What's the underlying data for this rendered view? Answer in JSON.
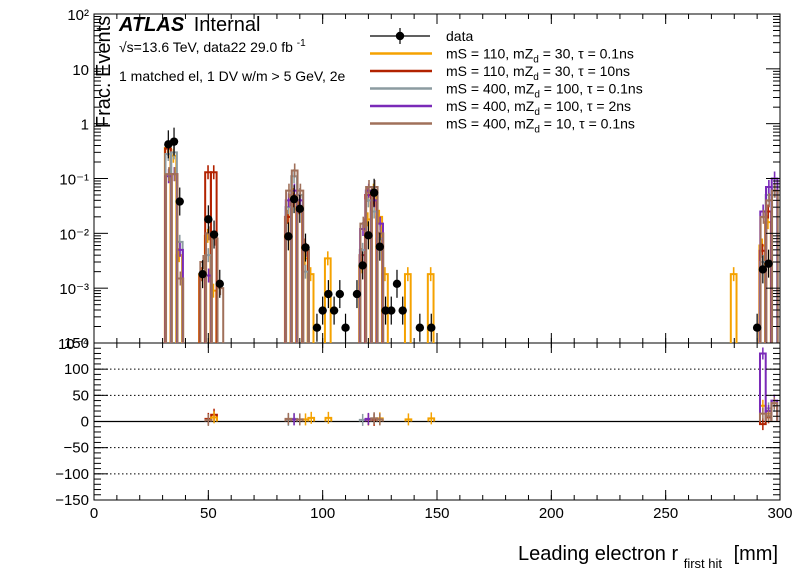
{
  "labels": {
    "atlas": "ATLAS",
    "internal": "Internal",
    "energy": "√s=13.6 TeV, data22 29.0 fb",
    "energy_sup": "-1",
    "selection": "1 matched el, 1 DV w/m > 5 GeV, 2e"
  },
  "chart_data": [
    {
      "type": "line",
      "panel": "main",
      "title": "",
      "xlabel": "Leading electron r",
      "xlabel_sub": "first hit",
      "xlabel_unit": "[mm]",
      "ylabel": "Frac. Events",
      "xlim": [
        0,
        300
      ],
      "ylim": [
        0.0001,
        100
      ],
      "log_y": true,
      "y_tick_labels": [
        "10⁻⁴",
        "10⁻³",
        "10⁻²",
        "10⁻¹",
        "1",
        "10",
        "10²"
      ],
      "x_tick_labels": [
        "0",
        "50",
        "100",
        "150",
        "200",
        "250",
        "300"
      ],
      "legend_position": "top-right",
      "bin_width": 2.5,
      "data_points": [
        {
          "x": 32.5,
          "y": 0.42
        },
        {
          "x": 35,
          "y": 0.47
        },
        {
          "x": 37.5,
          "y": 0.038
        },
        {
          "x": 47.5,
          "y": 0.0018
        },
        {
          "x": 50,
          "y": 0.018
        },
        {
          "x": 52.5,
          "y": 0.0095
        },
        {
          "x": 55,
          "y": 0.0012
        },
        {
          "x": 85,
          "y": 0.0088
        },
        {
          "x": 87.5,
          "y": 0.042
        },
        {
          "x": 90,
          "y": 0.028
        },
        {
          "x": 92.5,
          "y": 0.0055
        },
        {
          "x": 97.5,
          "y": 0.00019
        },
        {
          "x": 100,
          "y": 0.00039
        },
        {
          "x": 102.5,
          "y": 0.00078
        },
        {
          "x": 105,
          "y": 0.00039
        },
        {
          "x": 107.5,
          "y": 0.00078
        },
        {
          "x": 110,
          "y": 0.00019
        },
        {
          "x": 115,
          "y": 0.00078
        },
        {
          "x": 117.5,
          "y": 0.0026
        },
        {
          "x": 120,
          "y": 0.0092
        },
        {
          "x": 122.5,
          "y": 0.055
        },
        {
          "x": 125,
          "y": 0.0057
        },
        {
          "x": 127.5,
          "y": 0.00039
        },
        {
          "x": 130,
          "y": 0.00039
        },
        {
          "x": 132.5,
          "y": 0.0012
        },
        {
          "x": 135,
          "y": 0.00039
        },
        {
          "x": 142.5,
          "y": 0.00019
        },
        {
          "x": 147.5,
          "y": 0.00019
        },
        {
          "x": 290,
          "y": 0.00019
        },
        {
          "x": 292.5,
          "y": 0.0022
        },
        {
          "x": 295,
          "y": 0.0028
        }
      ],
      "series": [
        {
          "name": "data",
          "color": "#000000",
          "style": "marker"
        },
        {
          "name": "mS = 110, mZ_d = 30, τ = 0.1ns",
          "color": "#f5a200",
          "bins": [
            [
              32.5,
              0.36
            ],
            [
              35,
              0.26
            ],
            [
              37.5,
              0.004
            ],
            [
              47.5,
              0.0018
            ],
            [
              50,
              0.009
            ],
            [
              52.5,
              0.0009
            ],
            [
              85,
              0.02
            ],
            [
              87.5,
              0.05
            ],
            [
              90,
              0.03
            ],
            [
              92.5,
              0.0035
            ],
            [
              95,
              0.0018
            ],
            [
              102.5,
              0.0035
            ],
            [
              117.5,
              0.0025
            ],
            [
              120,
              0.018
            ],
            [
              122.5,
              0.06
            ],
            [
              125,
              0.02
            ],
            [
              127.5,
              0.0018
            ],
            [
              137.5,
              0.0018
            ],
            [
              147.5,
              0.0018
            ],
            [
              280,
              0.0018
            ],
            [
              292.5,
              0.006
            ],
            [
              295,
              0.016
            ]
          ]
        },
        {
          "name": "mS = 110, mZ_d = 30, τ = 10ns",
          "color": "#b22200",
          "bins": [
            [
              32.5,
              0.35
            ],
            [
              47.5,
              0.0018
            ],
            [
              50,
              0.13
            ],
            [
              52.5,
              0.13
            ],
            [
              85,
              0.02
            ],
            [
              87.5,
              0.04
            ],
            [
              90,
              0.03
            ],
            [
              92.5,
              0.006
            ],
            [
              117.5,
              0.004
            ],
            [
              120,
              0.05
            ],
            [
              122.5,
              0.04
            ],
            [
              125,
              0.008
            ],
            [
              292.5,
              0.0048
            ],
            [
              295,
              0.025
            ]
          ]
        },
        {
          "name": "mS = 400, mZ_d = 100, τ = 0.1ns",
          "color": "#8c9ba0",
          "bins": [
            [
              32.5,
              0.28
            ],
            [
              35,
              0.3
            ],
            [
              37.5,
              0.007
            ],
            [
              50,
              0.004
            ],
            [
              85,
              0.03
            ],
            [
              87.5,
              0.11
            ],
            [
              90,
              0.05
            ],
            [
              92.5,
              0.002
            ],
            [
              117.5,
              0.005
            ],
            [
              120,
              0.04
            ],
            [
              122.5,
              0.025
            ],
            [
              125,
              0.008
            ],
            [
              292.5,
              0.003
            ],
            [
              295,
              0.05
            ],
            [
              297.5,
              0.06
            ]
          ]
        },
        {
          "name": "mS = 400, mZ_d = 100, τ = 2ns",
          "color": "#7a2ab8",
          "bins": [
            [
              32.5,
              0.11
            ],
            [
              35,
              0.12
            ],
            [
              37.5,
              0.005
            ],
            [
              50,
              0.0017
            ],
            [
              85,
              0.04
            ],
            [
              87.5,
              0.06
            ],
            [
              90,
              0.04
            ],
            [
              117.5,
              0.012
            ],
            [
              120,
              0.06
            ],
            [
              122.5,
              0.04
            ],
            [
              125,
              0.015
            ],
            [
              292.5,
              0.025
            ],
            [
              295,
              0.07
            ],
            [
              297.5,
              0.1
            ]
          ]
        },
        {
          "name": "mS = 400, mZ_d = 10, τ = 0.1ns",
          "color": "#a0705a",
          "bins": [
            [
              32.5,
              0.12
            ],
            [
              35,
              0.12
            ],
            [
              37.5,
              0.0015
            ],
            [
              47.5,
              0.003
            ],
            [
              50,
              0.01
            ],
            [
              52.5,
              0.008
            ],
            [
              55,
              0.001
            ],
            [
              85,
              0.06
            ],
            [
              87.5,
              0.14
            ],
            [
              90,
              0.06
            ],
            [
              92.5,
              0.005
            ],
            [
              117.5,
              0.015
            ],
            [
              120,
              0.07
            ],
            [
              122.5,
              0.07
            ],
            [
              125,
              0.01
            ],
            [
              292.5,
              0.02
            ],
            [
              295,
              0.04
            ],
            [
              297.5,
              0.06
            ]
          ]
        }
      ]
    },
    {
      "type": "line",
      "panel": "ratio",
      "xlim": [
        0,
        300
      ],
      "ylim": [
        -150,
        150
      ],
      "y_tick_labels": [
        "−150",
        "−100",
        "−50",
        "0",
        "50",
        "100",
        "150"
      ],
      "y_gridlines": [
        -150,
        -100,
        -50,
        0,
        50,
        100,
        150
      ],
      "ratio_bins": [
        {
          "color": "#b22200",
          "points": [
            [
              50,
              5
            ],
            [
              52.5,
              13
            ],
            [
              120,
              4
            ],
            [
              122.5,
              3
            ],
            [
              292.5,
              -5
            ],
            [
              295,
              8
            ]
          ]
        },
        {
          "color": "#f5a200",
          "points": [
            [
              52.5,
              8
            ],
            [
              92.5,
              4
            ],
            [
              95,
              7
            ],
            [
              102.5,
              7
            ],
            [
              125,
              6
            ],
            [
              137.5,
              4
            ],
            [
              147.5,
              6
            ],
            [
              292.5,
              30
            ],
            [
              295,
              15
            ]
          ]
        },
        {
          "color": "#8c9ba0",
          "points": [
            [
              85,
              3
            ],
            [
              87.5,
              5
            ],
            [
              117.5,
              3
            ],
            [
              122.5,
              6
            ],
            [
              295,
              25
            ],
            [
              297.5,
              30
            ]
          ]
        },
        {
          "color": "#7a2ab8",
          "points": [
            [
              87.5,
              4
            ],
            [
              120,
              5
            ],
            [
              292.5,
              130
            ],
            [
              295,
              20
            ],
            [
              297.5,
              40
            ]
          ]
        },
        {
          "color": "#a0705a",
          "points": [
            [
              50,
              3
            ],
            [
              85,
              5
            ],
            [
              90,
              4
            ],
            [
              122.5,
              6
            ],
            [
              125,
              4
            ],
            [
              292.5,
              15
            ],
            [
              295,
              10
            ],
            [
              297.5,
              35
            ]
          ]
        }
      ]
    }
  ]
}
